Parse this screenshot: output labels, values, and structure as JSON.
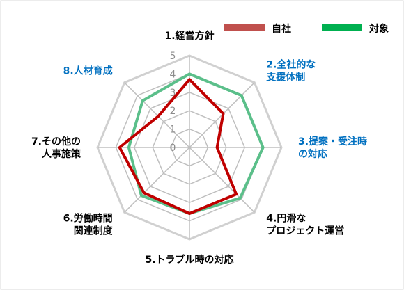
{
  "chart_data": {
    "type": "radar",
    "title": "",
    "axes": [
      {
        "lines": [
          "1.経営方針"
        ],
        "color": "#000000"
      },
      {
        "lines": [
          "2.全社的な",
          "支援体制"
        ],
        "color": "#0070c0"
      },
      {
        "lines": [
          "3.提案・受注時",
          "の対応"
        ],
        "color": "#0070c0"
      },
      {
        "lines": [
          "4.円滑な",
          "プロジェクト運営"
        ],
        "color": "#000000"
      },
      {
        "lines": [
          "5.トラブル時の対応"
        ],
        "color": "#000000"
      },
      {
        "lines": [
          "6.労働時間",
          "関連制度"
        ],
        "color": "#000000"
      },
      {
        "lines": [
          "7.その他の",
          "人事施策"
        ],
        "color": "#000000"
      },
      {
        "lines": [
          "8.人材育成"
        ],
        "color": "#0070c0"
      }
    ],
    "scale": {
      "min": 0,
      "max": 5,
      "ticks": [
        "0",
        "1",
        "2",
        "3",
        "4",
        "5"
      ]
    },
    "series": [
      {
        "name": "自社",
        "color": "#c00000",
        "legend_color": "#c0504d",
        "values": [
          3.7,
          2.6,
          1.5,
          3.6,
          3.6,
          3.5,
          3.8,
          2.4
        ]
      },
      {
        "name": "対象",
        "color": "#5bbf8a",
        "legend_color": "#00b050",
        "values": [
          4.0,
          4.0,
          4.0,
          3.9,
          3.6,
          3.7,
          3.3,
          3.6
        ]
      }
    ],
    "legend_position": "top-right",
    "grid": true
  }
}
